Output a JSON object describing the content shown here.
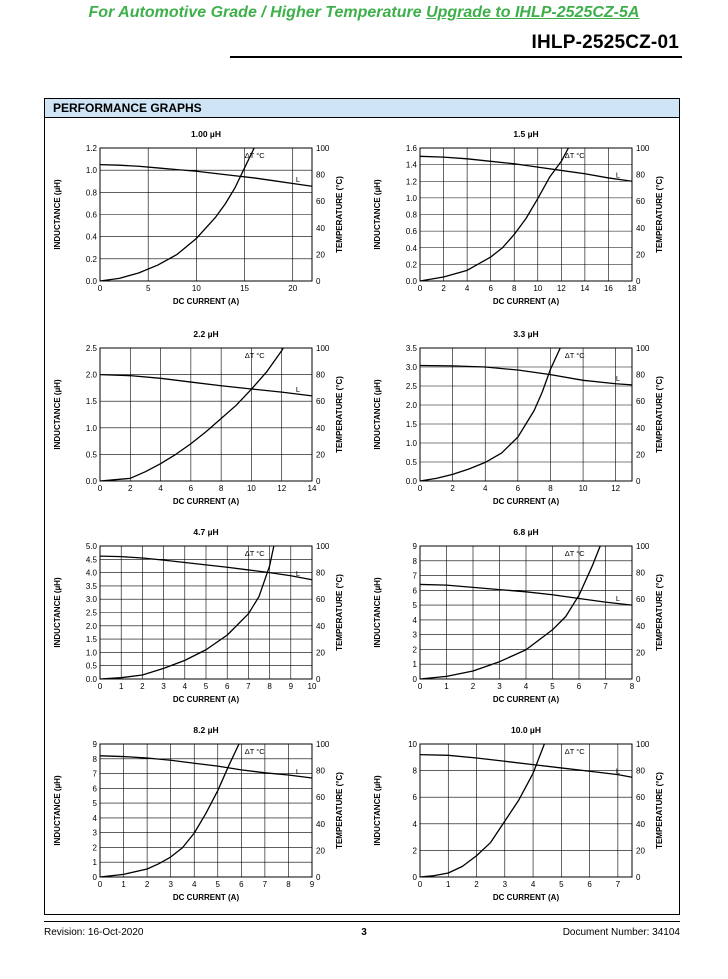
{
  "header": {
    "banner_text": "For Automotive Grade / Higher Temperature ",
    "banner_link": "Upgrade to IHLP-2525CZ-5A",
    "doc_title": "IHLP-2525CZ-01",
    "brand_color": "#3db04a"
  },
  "section": {
    "title": "PERFORMANCE GRAPHS",
    "header_color": "#cfe4f4"
  },
  "footer": {
    "revision": "Revision: 16-Oct-2020",
    "page": "3",
    "document_number": "Document Number: 34104"
  },
  "chart_data": [
    {
      "type": "line",
      "title": "1.00 µH",
      "xlabel": "DC CURRENT (A)",
      "ylabel": "INDUCTANCE (µH)",
      "y2label": "TEMPERATURE (°C)",
      "xlim": [
        0,
        22
      ],
      "x_ticks": [
        0,
        5,
        10,
        15,
        20
      ],
      "ylim": [
        0,
        1.2
      ],
      "y_ticks": [
        0.0,
        0.2,
        0.4,
        0.6,
        0.8,
        1.0,
        1.2
      ],
      "y2lim": [
        0,
        100
      ],
      "y2_ticks": [
        0,
        20,
        40,
        60,
        80,
        100
      ],
      "grid": true,
      "series": [
        {
          "name": "L",
          "axis": "left",
          "x": [
            0,
            2,
            4,
            6,
            8,
            10,
            12,
            14,
            16,
            18,
            20,
            22
          ],
          "y": [
            1.05,
            1.045,
            1.035,
            1.02,
            1.005,
            0.99,
            0.97,
            0.95,
            0.93,
            0.905,
            0.88,
            0.855
          ]
        },
        {
          "name": "ΔT °C",
          "axis": "right",
          "x": [
            0,
            2,
            4,
            6,
            8,
            10,
            12,
            13,
            14,
            15,
            16
          ],
          "y": [
            0,
            2,
            6,
            12,
            20,
            32,
            48,
            58,
            70,
            85,
            101
          ]
        }
      ]
    },
    {
      "type": "line",
      "title": "1.5 µH",
      "xlabel": "DC CURRENT (A)",
      "ylabel": "INDUCTANCE (µH)",
      "y2label": "TEMPERATURE (°C)",
      "xlim": [
        0,
        18
      ],
      "x_ticks": [
        0,
        2,
        4,
        6,
        8,
        10,
        12,
        14,
        16,
        18
      ],
      "ylim": [
        0,
        1.6
      ],
      "y_ticks": [
        0.0,
        0.2,
        0.4,
        0.6,
        0.8,
        1.0,
        1.2,
        1.4,
        1.6
      ],
      "y2lim": [
        0,
        100
      ],
      "y2_ticks": [
        0,
        20,
        40,
        60,
        80,
        100
      ],
      "grid": true,
      "series": [
        {
          "name": "L",
          "axis": "left",
          "x": [
            0,
            2,
            4,
            6,
            8,
            10,
            12,
            14,
            16,
            18
          ],
          "y": [
            1.5,
            1.49,
            1.47,
            1.44,
            1.41,
            1.37,
            1.33,
            1.29,
            1.24,
            1.2
          ]
        },
        {
          "name": "ΔT °C",
          "axis": "right",
          "x": [
            0,
            2,
            4,
            6,
            7,
            8,
            9,
            10,
            11,
            12,
            12.6
          ],
          "y": [
            0,
            3,
            8,
            18,
            25,
            35,
            47,
            62,
            78,
            90,
            101
          ]
        }
      ]
    },
    {
      "type": "line",
      "title": "2.2 µH",
      "xlabel": "DC CURRENT (A)",
      "ylabel": "INDUCTANCE (µH)",
      "y2label": "TEMPERATURE (°C)",
      "xlim": [
        0,
        14
      ],
      "x_ticks": [
        0,
        2,
        4,
        6,
        8,
        10,
        12,
        14
      ],
      "ylim": [
        0,
        2.5
      ],
      "y_ticks": [
        0.0,
        0.5,
        1.0,
        1.5,
        2.0,
        2.5
      ],
      "y2lim": [
        0,
        100
      ],
      "y2_ticks": [
        0,
        20,
        40,
        60,
        80,
        100
      ],
      "grid": true,
      "series": [
        {
          "name": "L",
          "axis": "left",
          "x": [
            0,
            2,
            4,
            6,
            8,
            10,
            12,
            14
          ],
          "y": [
            2.0,
            1.98,
            1.93,
            1.86,
            1.79,
            1.73,
            1.67,
            1.6
          ]
        },
        {
          "name": "ΔT °C",
          "axis": "right",
          "x": [
            0,
            1,
            2,
            3,
            4,
            5,
            6,
            7,
            8,
            9,
            10,
            11,
            12,
            12.1
          ],
          "y": [
            0,
            1,
            2,
            7,
            13,
            20,
            28,
            37,
            47,
            57,
            69,
            82,
            98,
            100
          ]
        }
      ]
    },
    {
      "type": "line",
      "title": "3.3 µH",
      "xlabel": "DC CURRENT (A)",
      "ylabel": "INDUCTANCE (µH)",
      "y2label": "TEMPERATURE (°C)",
      "xlim": [
        0,
        13
      ],
      "x_ticks": [
        0,
        2,
        4,
        6,
        8,
        10,
        12
      ],
      "ylim": [
        0,
        3.5
      ],
      "y_ticks": [
        0.0,
        0.5,
        1.0,
        1.5,
        2.0,
        2.5,
        3.0,
        3.5
      ],
      "y2lim": [
        0,
        100
      ],
      "y2_ticks": [
        0,
        20,
        40,
        60,
        80,
        100
      ],
      "grid": true,
      "series": [
        {
          "name": "L",
          "axis": "left",
          "x": [
            0,
            2,
            4,
            6,
            8,
            10,
            12,
            13
          ],
          "y": [
            3.04,
            3.03,
            3.0,
            2.92,
            2.8,
            2.65,
            2.56,
            2.53
          ]
        },
        {
          "name": "ΔT °C",
          "axis": "right",
          "x": [
            0,
            1,
            2,
            3,
            4,
            5,
            6,
            7,
            7.5,
            8,
            8.6
          ],
          "y": [
            0,
            2,
            5,
            9,
            14,
            21,
            33,
            53,
            67,
            84,
            101
          ]
        }
      ]
    },
    {
      "type": "line",
      "title": "4.7 µH",
      "xlabel": "DC CURRENT (A)",
      "ylabel": "INDUCTANCE (µH)",
      "y2label": "TEMPERATURE (°C)",
      "xlim": [
        0,
        10
      ],
      "x_ticks": [
        0,
        1,
        2,
        3,
        4,
        5,
        6,
        7,
        8,
        9,
        10
      ],
      "ylim": [
        0,
        5.0
      ],
      "y_ticks": [
        0.0,
        0.5,
        1.0,
        1.5,
        2.0,
        2.5,
        3.0,
        3.5,
        4.0,
        4.5,
        5.0
      ],
      "y2lim": [
        0,
        100
      ],
      "y2_ticks": [
        0,
        20,
        40,
        60,
        80,
        100
      ],
      "grid": true,
      "series": [
        {
          "name": "L",
          "axis": "left",
          "x": [
            0,
            1,
            2,
            3,
            4,
            5,
            6,
            7,
            8,
            9,
            10
          ],
          "y": [
            4.62,
            4.6,
            4.55,
            4.47,
            4.38,
            4.29,
            4.2,
            4.1,
            4.0,
            3.88,
            3.73
          ]
        },
        {
          "name": "ΔT °C",
          "axis": "right",
          "x": [
            0,
            1,
            2,
            3,
            4,
            5,
            6,
            7,
            7.5,
            8,
            8.2
          ],
          "y": [
            0,
            1,
            3,
            8,
            14,
            22,
            33,
            49,
            62,
            85,
            100
          ]
        }
      ]
    },
    {
      "type": "line",
      "title": "6.8 µH",
      "xlabel": "DC CURRENT (A)",
      "ylabel": "INDUCTANCE (µH)",
      "y2label": "TEMPERATURE (°C)",
      "xlim": [
        0,
        8
      ],
      "x_ticks": [
        0,
        1,
        2,
        3,
        4,
        5,
        6,
        7,
        8
      ],
      "ylim": [
        0,
        9.0
      ],
      "y_ticks": [
        0.0,
        1.0,
        2.0,
        3.0,
        4.0,
        5.0,
        6.0,
        7.0,
        8.0,
        9.0
      ],
      "y2lim": [
        0,
        100
      ],
      "y2_ticks": [
        0,
        20,
        40,
        60,
        80,
        100
      ],
      "grid": true,
      "series": [
        {
          "name": "L",
          "axis": "left",
          "x": [
            0,
            1,
            2,
            3,
            4,
            5,
            6,
            7,
            8
          ],
          "y": [
            6.4,
            6.35,
            6.2,
            6.05,
            5.9,
            5.7,
            5.45,
            5.2,
            5.0
          ]
        },
        {
          "name": "ΔT °C",
          "axis": "right",
          "x": [
            0,
            1,
            2,
            3,
            4,
            5,
            5.5,
            6,
            6.5,
            6.8
          ],
          "y": [
            0,
            2,
            6,
            13,
            22,
            37,
            47,
            63,
            85,
            100
          ]
        }
      ]
    },
    {
      "type": "line",
      "title": "8.2 µH",
      "xlabel": "DC CURRENT (A)",
      "ylabel": "INDUCTANCE (µH)",
      "y2label": "TEMPERATURE (°C)",
      "xlim": [
        0,
        9
      ],
      "x_ticks": [
        0,
        1,
        2,
        3,
        4,
        5,
        6,
        7,
        8,
        9
      ],
      "ylim": [
        0,
        9.0
      ],
      "y_ticks": [
        0.0,
        1.0,
        2.0,
        3.0,
        4.0,
        5.0,
        6.0,
        7.0,
        8.0,
        9.0
      ],
      "y2lim": [
        0,
        100
      ],
      "y2_ticks": [
        0,
        20,
        40,
        60,
        80,
        100
      ],
      "grid": true,
      "series": [
        {
          "name": "L",
          "axis": "left",
          "x": [
            0,
            1,
            2,
            3,
            4,
            5,
            6,
            7,
            8,
            9
          ],
          "y": [
            8.2,
            8.15,
            8.05,
            7.9,
            7.7,
            7.5,
            7.25,
            7.05,
            6.9,
            6.7
          ]
        },
        {
          "name": "ΔT °C",
          "axis": "right",
          "x": [
            0,
            1,
            2,
            2.5,
            3,
            3.5,
            4,
            4.5,
            5,
            5.5,
            5.9
          ],
          "y": [
            0,
            2,
            6,
            10,
            15,
            22,
            33,
            48,
            65,
            85,
            100
          ]
        }
      ]
    },
    {
      "type": "line",
      "title": "10.0 µH",
      "xlabel": "DC CURRENT (A)",
      "ylabel": "INDUCTANCE (µH)",
      "y2label": "TEMPERATURE (°C)",
      "xlim": [
        0,
        7.5
      ],
      "x_ticks": [
        0,
        1,
        2,
        3,
        4,
        5,
        6,
        7
      ],
      "ylim": [
        0,
        10.0
      ],
      "y_ticks": [
        0.0,
        2.0,
        4.0,
        6.0,
        8.0,
        10.0
      ],
      "y2lim": [
        0,
        100
      ],
      "y2_ticks": [
        0,
        20,
        40,
        60,
        80,
        100
      ],
      "grid": true,
      "series": [
        {
          "name": "L",
          "axis": "left",
          "x": [
            0,
            1,
            2,
            3,
            4,
            5,
            6,
            7,
            7.5
          ],
          "y": [
            9.2,
            9.15,
            8.95,
            8.7,
            8.45,
            8.2,
            7.95,
            7.7,
            7.5
          ]
        },
        {
          "name": "ΔT °C",
          "axis": "right",
          "x": [
            0,
            0.5,
            1,
            1.5,
            2,
            2.5,
            3,
            3.5,
            4,
            4.4
          ],
          "y": [
            0,
            1,
            3,
            8,
            16,
            26,
            42,
            58,
            78,
            100
          ]
        }
      ]
    }
  ]
}
